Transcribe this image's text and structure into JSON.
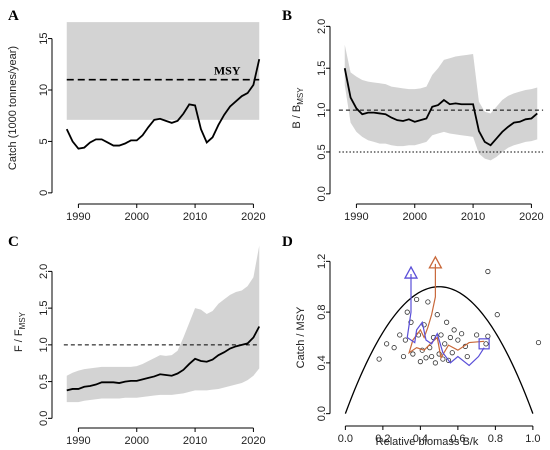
{
  "chart_data": [
    {
      "panel": "A",
      "type": "line",
      "ylabel": "Catch (1000 tonnes/year)",
      "xlim": [
        1986.5,
        2022.5
      ],
      "ylim": [
        -0.5,
        17
      ],
      "xticks": [
        1990,
        2000,
        2010,
        2020
      ],
      "yticks": [
        0,
        5,
        10,
        15
      ],
      "band": {
        "x0": 1988,
        "x1": 2021,
        "lower": 7.1,
        "upper": 16.6
      },
      "hline": {
        "y": 11,
        "label": "MSY",
        "style": "dashed"
      },
      "series": [
        {
          "x": [
            1988,
            1989,
            1990,
            1991,
            1992,
            1993,
            1994,
            1995,
            1996,
            1997,
            1998,
            1999,
            2000,
            2001,
            2002,
            2003,
            2004,
            2005,
            2006,
            2007,
            2008,
            2009,
            2010,
            2011,
            2012,
            2013,
            2014,
            2015,
            2016,
            2017,
            2018,
            2019,
            2020,
            2021
          ],
          "y": [
            6.2,
            5.0,
            4.3,
            4.4,
            4.9,
            5.2,
            5.2,
            4.9,
            4.6,
            4.6,
            4.8,
            5.1,
            5.1,
            5.6,
            6.4,
            7.1,
            7.2,
            7.0,
            6.8,
            7.0,
            7.7,
            8.6,
            8.5,
            6.2,
            4.9,
            5.4,
            6.6,
            7.6,
            8.4,
            8.9,
            9.4,
            9.7,
            10.5,
            13.0
          ]
        }
      ]
    },
    {
      "panel": "B",
      "type": "line",
      "ylabel": "B / B",
      "ylabel_sub": "MSY",
      "xlim": [
        1986.5,
        2022.5
      ],
      "ylim": [
        -0.05,
        2.1
      ],
      "xticks": [
        1990,
        2000,
        2010,
        2020
      ],
      "yticks": [
        0.0,
        0.5,
        1.0,
        1.5,
        2.0
      ],
      "hlines": [
        {
          "y": 1.0,
          "style": "dashed"
        },
        {
          "y": 0.5,
          "style": "dotted"
        }
      ],
      "series": [
        {
          "x": [
            1988,
            1989,
            1990,
            1991,
            1992,
            1993,
            1994,
            1995,
            1996,
            1997,
            1998,
            1999,
            2000,
            2001,
            2002,
            2003,
            2004,
            2005,
            2006,
            2007,
            2008,
            2009,
            2010,
            2011,
            2012,
            2013,
            2014,
            2015,
            2016,
            2017,
            2018,
            2019,
            2020,
            2021
          ],
          "y": [
            1.5,
            1.15,
            1.02,
            0.95,
            0.97,
            0.97,
            0.96,
            0.95,
            0.91,
            0.88,
            0.87,
            0.89,
            0.86,
            0.88,
            0.9,
            1.04,
            1.06,
            1.12,
            1.07,
            1.08,
            1.07,
            1.07,
            1.07,
            0.75,
            0.62,
            0.58,
            0.66,
            0.74,
            0.8,
            0.85,
            0.86,
            0.89,
            0.9,
            0.96
          ],
          "lower": [
            1.3,
            0.85,
            0.74,
            0.68,
            0.64,
            0.62,
            0.6,
            0.6,
            0.58,
            0.57,
            0.57,
            0.58,
            0.58,
            0.6,
            0.62,
            0.7,
            0.72,
            0.74,
            0.72,
            0.71,
            0.7,
            0.69,
            0.68,
            0.48,
            0.42,
            0.4,
            0.44,
            0.5,
            0.55,
            0.58,
            0.6,
            0.62,
            0.63,
            0.65
          ],
          "upper": [
            1.78,
            1.45,
            1.4,
            1.36,
            1.34,
            1.33,
            1.32,
            1.31,
            1.28,
            1.27,
            1.26,
            1.25,
            1.25,
            1.26,
            1.28,
            1.42,
            1.5,
            1.6,
            1.62,
            1.64,
            1.65,
            1.66,
            1.67,
            1.1,
            0.98,
            0.96,
            1.04,
            1.12,
            1.17,
            1.2,
            1.22,
            1.24,
            1.25,
            1.27
          ]
        }
      ]
    },
    {
      "panel": "C",
      "type": "line",
      "ylabel": "F / F",
      "ylabel_sub": "MSY",
      "xlim": [
        1986.5,
        2022.5
      ],
      "ylim": [
        -0.05,
        2.4
      ],
      "xticks": [
        1990,
        2000,
        2010,
        2020
      ],
      "yticks": [
        0.0,
        0.5,
        1.0,
        1.5,
        2.0
      ],
      "hline": {
        "y": 1.0,
        "style": "dashed"
      },
      "series": [
        {
          "x": [
            1988,
            1989,
            1990,
            1991,
            1992,
            1993,
            1994,
            1995,
            1996,
            1997,
            1998,
            1999,
            2000,
            2001,
            2002,
            2003,
            2004,
            2005,
            2006,
            2007,
            2008,
            2009,
            2010,
            2011,
            2012,
            2013,
            2014,
            2015,
            2016,
            2017,
            2018,
            2019,
            2020,
            2021
          ],
          "y": [
            0.38,
            0.4,
            0.4,
            0.43,
            0.44,
            0.46,
            0.49,
            0.49,
            0.49,
            0.48,
            0.5,
            0.51,
            0.51,
            0.53,
            0.55,
            0.57,
            0.6,
            0.59,
            0.58,
            0.61,
            0.66,
            0.74,
            0.81,
            0.78,
            0.77,
            0.8,
            0.86,
            0.9,
            0.95,
            0.98,
            1.0,
            1.02,
            1.1,
            1.25
          ],
          "lower": [
            0.22,
            0.22,
            0.22,
            0.24,
            0.25,
            0.26,
            0.27,
            0.27,
            0.27,
            0.27,
            0.28,
            0.28,
            0.28,
            0.29,
            0.3,
            0.31,
            0.32,
            0.32,
            0.32,
            0.33,
            0.34,
            0.36,
            0.38,
            0.38,
            0.38,
            0.39,
            0.4,
            0.42,
            0.44,
            0.46,
            0.48,
            0.52,
            0.58,
            0.68
          ],
          "upper": [
            0.58,
            0.62,
            0.65,
            0.67,
            0.68,
            0.69,
            0.7,
            0.7,
            0.7,
            0.7,
            0.7,
            0.7,
            0.71,
            0.74,
            0.78,
            0.82,
            0.86,
            0.85,
            0.86,
            0.92,
            1.1,
            1.3,
            1.5,
            1.48,
            1.42,
            1.46,
            1.56,
            1.62,
            1.68,
            1.72,
            1.74,
            1.8,
            1.92,
            2.35
          ]
        }
      ]
    },
    {
      "panel": "D",
      "type": "scatter",
      "xlabel": "Relative biomass B/k",
      "ylabel": "Catch / MSY",
      "xlim": [
        -0.05,
        1.07
      ],
      "ylim": [
        -0.05,
        1.25
      ],
      "xticks": [
        0.0,
        0.2,
        0.4,
        0.6,
        0.8,
        1.0
      ],
      "yticks": [
        0.0,
        0.4,
        0.8,
        1.2
      ],
      "curve": "4*x*(1-x)",
      "points": [
        [
          0.18,
          0.43
        ],
        [
          0.22,
          0.55
        ],
        [
          0.26,
          0.52
        ],
        [
          0.29,
          0.62
        ],
        [
          0.31,
          0.45
        ],
        [
          0.32,
          0.58
        ],
        [
          0.33,
          0.8
        ],
        [
          0.35,
          0.72
        ],
        [
          0.36,
          0.47
        ],
        [
          0.38,
          0.9
        ],
        [
          0.39,
          0.62
        ],
        [
          0.4,
          0.41
        ],
        [
          0.41,
          0.5
        ],
        [
          0.42,
          0.7
        ],
        [
          0.43,
          0.44
        ],
        [
          0.44,
          0.88
        ],
        [
          0.45,
          0.52
        ],
        [
          0.46,
          0.45
        ],
        [
          0.47,
          0.6
        ],
        [
          0.48,
          0.4
        ],
        [
          0.49,
          0.78
        ],
        [
          0.5,
          0.47
        ],
        [
          0.51,
          0.62
        ],
        [
          0.52,
          0.43
        ],
        [
          0.53,
          0.55
        ],
        [
          0.54,
          0.72
        ],
        [
          0.55,
          0.42
        ],
        [
          0.56,
          0.6
        ],
        [
          0.57,
          0.48
        ],
        [
          0.58,
          0.66
        ],
        [
          0.6,
          0.58
        ],
        [
          0.62,
          0.63
        ],
        [
          0.64,
          0.53
        ],
        [
          0.65,
          0.45
        ],
        [
          0.7,
          0.62
        ],
        [
          0.75,
          0.55
        ],
        [
          0.76,
          0.61
        ],
        [
          0.81,
          0.78
        ],
        [
          0.76,
          1.12
        ],
        [
          1.03,
          0.56
        ]
      ],
      "path_blue": [
        [
          0.35,
          1.1
        ],
        [
          0.35,
          0.8
        ],
        [
          0.33,
          0.6
        ],
        [
          0.37,
          0.56
        ],
        [
          0.38,
          0.66
        ],
        [
          0.41,
          0.72
        ],
        [
          0.43,
          0.58
        ],
        [
          0.46,
          0.55
        ],
        [
          0.49,
          0.63
        ],
        [
          0.52,
          0.48
        ],
        [
          0.56,
          0.4
        ],
        [
          0.6,
          0.45
        ],
        [
          0.66,
          0.38
        ],
        [
          0.71,
          0.45
        ],
        [
          0.74,
          0.52
        ]
      ],
      "path_red": [
        [
          0.48,
          1.18
        ],
        [
          0.48,
          0.92
        ],
        [
          0.46,
          0.78
        ],
        [
          0.44,
          0.68
        ],
        [
          0.42,
          0.6
        ],
        [
          0.4,
          0.66
        ],
        [
          0.36,
          0.58
        ],
        [
          0.34,
          0.48
        ],
        [
          0.38,
          0.52
        ],
        [
          0.42,
          0.5
        ],
        [
          0.46,
          0.56
        ],
        [
          0.49,
          0.6
        ],
        [
          0.51,
          0.44
        ],
        [
          0.55,
          0.54
        ],
        [
          0.6,
          0.5
        ],
        [
          0.66,
          0.56
        ],
        [
          0.74,
          0.57
        ]
      ],
      "start_marker": [
        0.74,
        0.55
      ],
      "blue_end": [
        0.35,
        1.1
      ],
      "red_end": [
        0.48,
        1.18
      ],
      "colors": {
        "blue": "#5a4fd8",
        "red": "#c8683a",
        "band": "#d3d3d3"
      }
    }
  ]
}
